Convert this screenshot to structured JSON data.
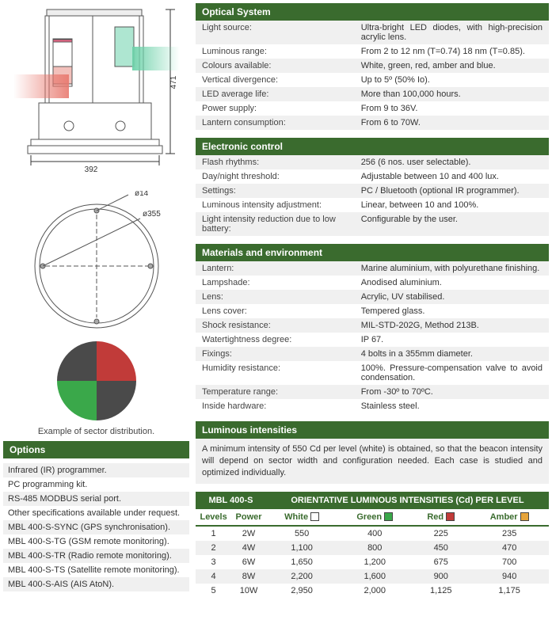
{
  "drawings": {
    "side_dim_h": "392",
    "side_dim_v": "471",
    "top_dim_inner": "ø14",
    "top_dim_outer": "ø355",
    "pie_colors": [
      "#c13b39",
      "#4a4a4a",
      "#3aa84a",
      "#4a4a4a"
    ],
    "caption": "Example of sector distribution."
  },
  "options": {
    "header": "Options",
    "items": [
      "Infrared (IR) programmer.",
      "PC programming kit.",
      "RS-485 MODBUS serial port.",
      "Other specifications available under request.",
      "MBL 400-S-SYNC (GPS synchronisation).",
      "MBL 400-S-TG (GSM remote monitoring).",
      "MBL 400-S-TR (Radio remote monitoring).",
      "MBL 400-S-TS (Satellite remote monitoring).",
      "MBL 400-S-AIS (AIS AtoN)."
    ]
  },
  "sections": {
    "optical": {
      "header": "Optical System",
      "rows": [
        [
          "Light source:",
          "Ultra-bright LED diodes, with high-precision acrylic lens."
        ],
        [
          "Luminous range:",
          "From 2 to 12 nm (T=0.74) 18 nm (T=0.85)."
        ],
        [
          "Colours available:",
          "White, green, red, amber and blue."
        ],
        [
          "Vertical divergence:",
          "Up to 5º (50% Io)."
        ],
        [
          "LED average life:",
          "More than 100,000 hours."
        ],
        [
          "Power supply:",
          "From 9 to 36V."
        ],
        [
          "Lantern consumption:",
          "From 6 to 70W."
        ]
      ]
    },
    "electronic": {
      "header": "Electronic control",
      "rows": [
        [
          "Flash rhythms:",
          "256 (6 nos. user selectable)."
        ],
        [
          "Day/night threshold:",
          "Adjustable between 10 and 400 lux."
        ],
        [
          "Settings:",
          "PC / Bluetooth (optional IR programmer)."
        ],
        [
          "Luminous intensity adjustment:",
          "Linear, between 10 and 100%."
        ],
        [
          "Light intensity reduction due to low battery:",
          "Configurable by the user."
        ]
      ]
    },
    "materials": {
      "header": "Materials and environment",
      "rows": [
        [
          "Lantern:",
          "Marine aluminium, with polyurethane finishing."
        ],
        [
          "Lampshade:",
          "Anodised aluminium."
        ],
        [
          "Lens:",
          "Acrylic, UV stabilised."
        ],
        [
          "Lens cover:",
          "Tempered glass."
        ],
        [
          "Shock resistance:",
          "MIL-STD-202G, Method 213B."
        ],
        [
          "Watertightness degree:",
          "IP 67."
        ],
        [
          "Fixings:",
          "4 bolts in a 355mm diameter."
        ],
        [
          "Humidity resistance:",
          "100%. Pressure-compensation valve to avoid condensation."
        ],
        [
          "Temperature range:",
          "From -30º to 70ºC."
        ],
        [
          "Inside hardware:",
          "Stainless steel."
        ]
      ]
    },
    "luminous": {
      "header": "Luminous intensities",
      "note": "A minimum intensity of 550 Cd per level (white) is obtained, so that the beacon intensity will depend on sector width and configuration needed. Each case is studied and optimized individually."
    }
  },
  "intensity_table": {
    "model": "MBL 400-S",
    "title": "ORIENTATIVE LUMINOUS INTENSITIES (Cd) PER LEVEL",
    "columns": [
      "Levels",
      "Power",
      "White",
      "Green",
      "Red",
      "Amber"
    ],
    "swatches": {
      "White": "#ffffff",
      "Green": "#3aa84a",
      "Red": "#c13b39",
      "Amber": "#e6a43c"
    },
    "rows": [
      [
        "1",
        "2W",
        "550",
        "400",
        "225",
        "235"
      ],
      [
        "2",
        "4W",
        "1,100",
        "800",
        "450",
        "470"
      ],
      [
        "3",
        "6W",
        "1,650",
        "1,200",
        "675",
        "700"
      ],
      [
        "4",
        "8W",
        "2,200",
        "1,600",
        "900",
        "940"
      ],
      [
        "5",
        "10W",
        "2,950",
        "2,000",
        "1,125",
        "1,175"
      ]
    ]
  },
  "colors": {
    "header_bg": "#3a6b2e",
    "row_alt": "#f0f0f0"
  }
}
